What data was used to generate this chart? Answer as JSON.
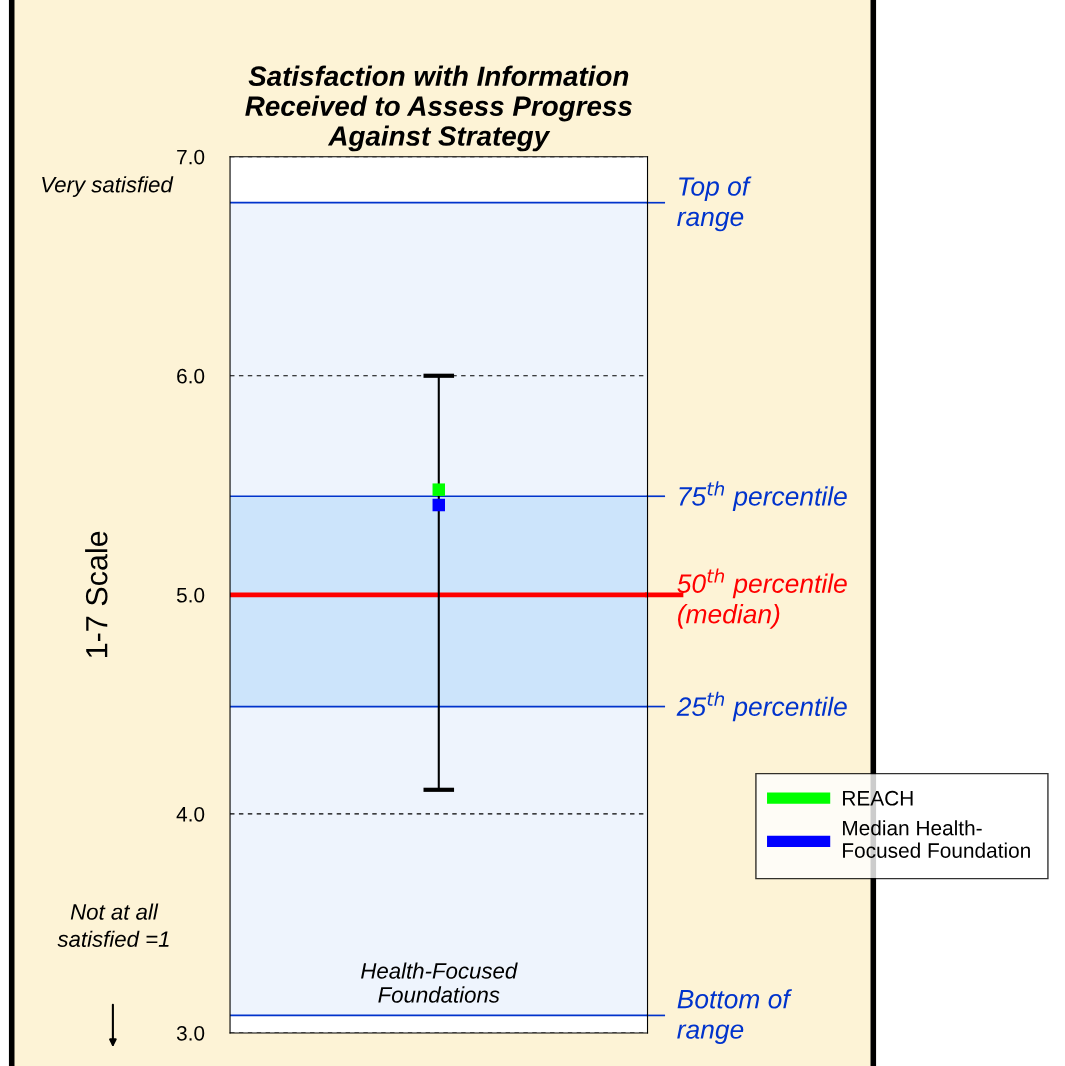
{
  "chart_data": {
    "type": "scatter",
    "title": "Satisfaction with Information\nReceived to Assess Progress\nAgainst Strategy",
    "ylabel": "1-7 Scale",
    "categories": [
      "Health-Focused\nFoundations"
    ],
    "series": [
      {
        "name": "REACH",
        "color": "#00ff00",
        "values": [
          5.48
        ]
      },
      {
        "name": "Median Health-Focused Foundation",
        "color": "#0000ff",
        "values": [
          5.41
        ],
        "errors": [
          [
            4.11,
            6.0
          ]
        ]
      }
    ],
    "marker": "square",
    "ylim": [
      3.0,
      7.0
    ],
    "yticks": [
      {
        "value": 3,
        "label": "3.0"
      },
      {
        "value": 4,
        "label": "4.0"
      },
      {
        "value": 5,
        "label": "5.0"
      },
      {
        "value": 6,
        "label": "6.0"
      },
      {
        "value": 7,
        "label": "7.0"
      }
    ],
    "grid": "y",
    "bands": [
      {
        "axis": "y",
        "from": 3.08,
        "to": 6.79,
        "label": null,
        "color": "#eef4fd"
      },
      {
        "axis": "y",
        "from": 4.49,
        "to": 5.45,
        "label": null,
        "color": "#cce4fb"
      }
    ],
    "ref_lines": [
      {
        "axis": "y",
        "value": 6.79,
        "label": "Top of\nrange",
        "color": "#0033cc"
      },
      {
        "axis": "y",
        "value": 5.45,
        "label": "75$^{th}$ percentile",
        "color": "#0033cc"
      },
      {
        "axis": "y",
        "value": 5.0,
        "label": "50$^{th}$ percentile\n(median)",
        "color": "#ff0000"
      },
      {
        "axis": "y",
        "value": 4.49,
        "label": "25$^{th}$ percentile",
        "color": "#0033cc"
      },
      {
        "axis": "y",
        "value": 3.08,
        "label": "Bottom of\nrange",
        "color": "#0033cc"
      }
    ],
    "annotations": [
      "Very satisfied",
      "Not at all\nsatisfied =1"
    ],
    "legend": "right"
  }
}
